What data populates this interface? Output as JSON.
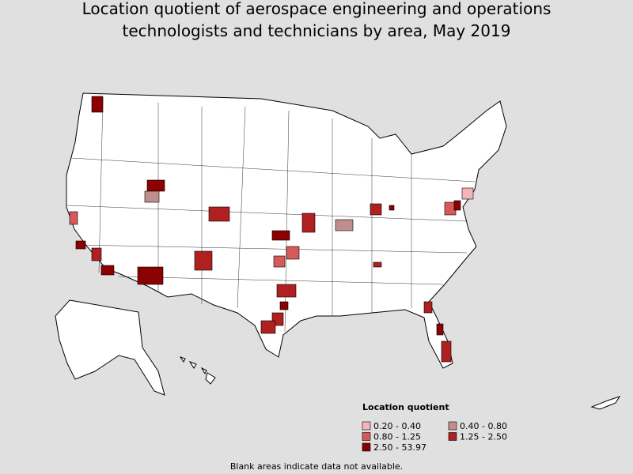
{
  "header": {
    "title_lines": [
      "Location quotient of aerospace engineering and operations",
      "technologists and technicians by area, May 2019"
    ]
  },
  "legend": {
    "title": "Location quotient",
    "items": [
      {
        "label": "0.20 - 0.40",
        "color": "#f7b4b8"
      },
      {
        "label": "0.40 - 0.80",
        "color": "#c28d8d"
      },
      {
        "label": "0.80 - 1.25",
        "color": "#d65a5a"
      },
      {
        "label": "1.25 - 2.50",
        "color": "#b02020"
      },
      {
        "label": "2.50 - 53.97",
        "color": "#8b0000"
      }
    ]
  },
  "footnote": "Blank areas indicate data not available."
}
